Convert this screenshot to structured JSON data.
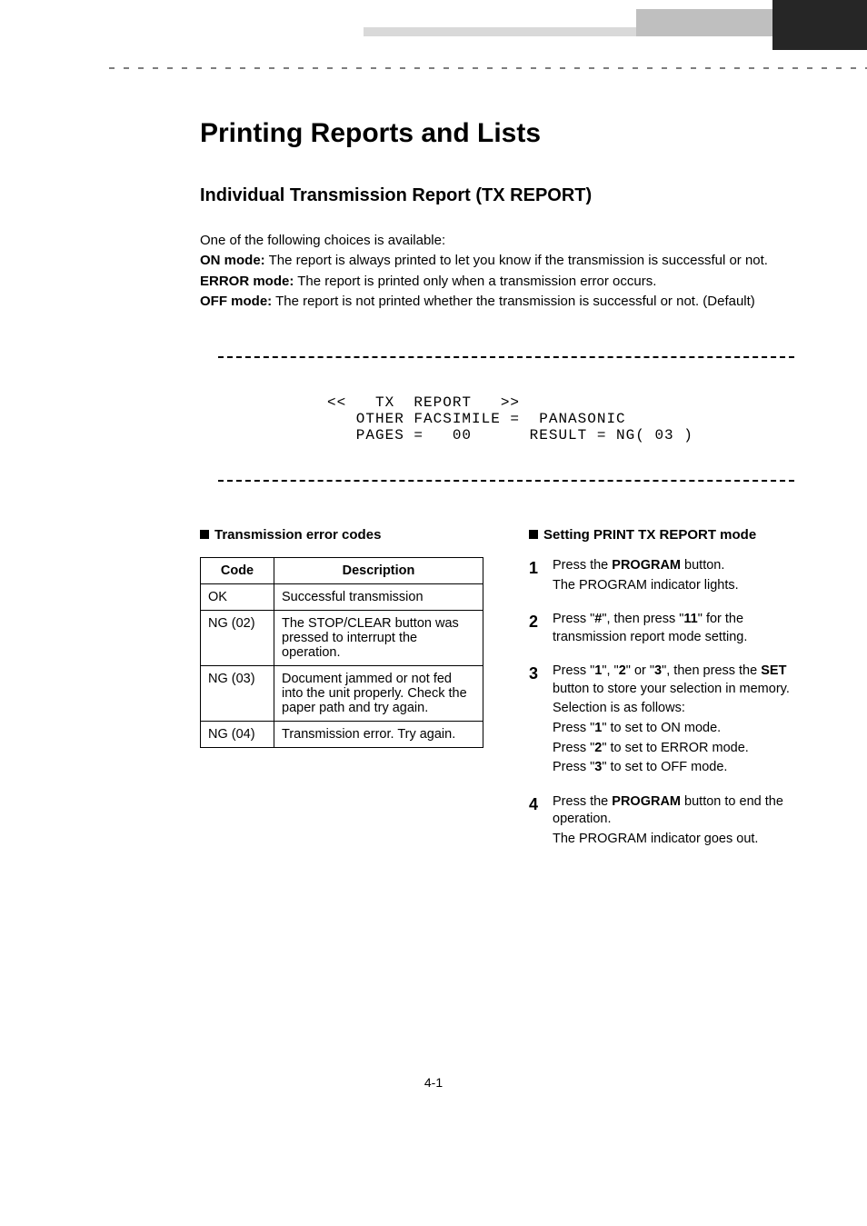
{
  "title": "Printing Reports and Lists",
  "subtitle": "Individual Transmission Report (TX REPORT)",
  "intro_lead": "One of the following choices is available:",
  "modes": [
    {
      "label": "ON mode:",
      "desc": " The report is always printed to let you know if the transmission is successful or not."
    },
    {
      "label": "ERROR mode:",
      "desc": " The report is printed only when a transmission error occurs."
    },
    {
      "label": "OFF mode:",
      "desc": " The report is not printed whether the transmission is successful or not. (Default)"
    }
  ],
  "report": {
    "line1": "<<   TX  REPORT   >>",
    "line2": "   OTHER FACSIMILE =  PANASONIC",
    "line3": "   PAGES =   00      RESULT = NG( 03 )"
  },
  "left_header": "Transmission error codes",
  "table": {
    "columns": [
      "Code",
      "Description"
    ],
    "rows": [
      {
        "code": "OK",
        "desc": "Successful transmission"
      },
      {
        "code": "NG (02)",
        "desc": "The STOP/CLEAR button was pressed to interrupt the operation."
      },
      {
        "code": "NG (03)",
        "desc": "Document jammed or not fed into the unit properly. Check the paper path and try again."
      },
      {
        "code": "NG (04)",
        "desc": "Transmission error. Try again."
      }
    ]
  },
  "right_header": "Setting PRINT TX REPORT mode",
  "steps": [
    {
      "num": "1",
      "lines": [
        [
          {
            "t": "Press the "
          },
          {
            "t": "PROGRAM",
            "b": true
          },
          {
            "t": " button."
          }
        ],
        [
          {
            "t": "The PROGRAM indicator lights."
          }
        ]
      ]
    },
    {
      "num": "2",
      "lines": [
        [
          {
            "t": "Press \""
          },
          {
            "t": "#",
            "b": true
          },
          {
            "t": "\", then press \""
          },
          {
            "t": "11",
            "b": true
          },
          {
            "t": "\" for the transmission report mode setting."
          }
        ]
      ]
    },
    {
      "num": "3",
      "lines": [
        [
          {
            "t": "Press \""
          },
          {
            "t": "1",
            "b": true
          },
          {
            "t": "\", \""
          },
          {
            "t": "2",
            "b": true
          },
          {
            "t": "\" or \""
          },
          {
            "t": "3",
            "b": true
          },
          {
            "t": "\", then press the "
          },
          {
            "t": "SET",
            "b": true
          },
          {
            "t": " button to store your selection in memory."
          }
        ],
        [
          {
            "t": "Selection is as follows:"
          }
        ],
        [
          {
            "t": "Press \""
          },
          {
            "t": "1",
            "b": true
          },
          {
            "t": "\" to set to ON mode."
          }
        ],
        [
          {
            "t": "Press \""
          },
          {
            "t": "2",
            "b": true
          },
          {
            "t": "\" to set to ERROR mode."
          }
        ],
        [
          {
            "t": "Press \""
          },
          {
            "t": "3",
            "b": true
          },
          {
            "t": "\" to set to OFF mode."
          }
        ]
      ]
    },
    {
      "num": "4",
      "lines": [
        [
          {
            "t": "Press the "
          },
          {
            "t": "PROGRAM",
            "b": true
          },
          {
            "t": " button to end the operation."
          }
        ],
        [
          {
            "t": "The PROGRAM indicator goes out."
          }
        ]
      ]
    }
  ],
  "page_number": "4-1",
  "colors": {
    "text": "#000000",
    "background": "#ffffff",
    "border": "#000000"
  },
  "fonts": {
    "body_family": "Arial, Helvetica, sans-serif",
    "mono_family": "Courier New, monospace",
    "h1_size_pt": 22,
    "h2_size_pt": 15,
    "body_size_pt": 11,
    "mono_size_pt": 12
  }
}
